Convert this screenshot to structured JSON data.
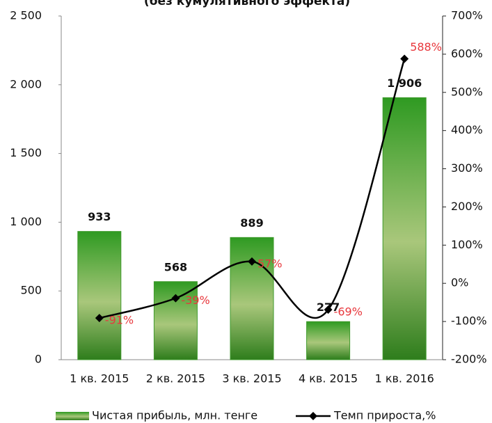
{
  "chart_data": {
    "type": "bar",
    "title": "(без кумулятивного эффекта)",
    "categories": [
      "1 кв. 2015",
      "2 кв. 2015",
      "3 кв. 2015",
      "4 кв. 2015",
      "1 кв. 2016"
    ],
    "series": [
      {
        "name": "Чистая прибыль, млн. тенге",
        "type": "bar",
        "color": "#3f9a2c",
        "values": [
          933,
          568,
          889,
          277,
          1906
        ],
        "value_labels": [
          "933",
          "568",
          "889",
          "277",
          "1 906"
        ]
      },
      {
        "name": "Темп прироста,%",
        "type": "line",
        "axis": "y2",
        "color": "#000000",
        "label_color": "#e8383d",
        "values": [
          -91,
          -39,
          57,
          -69,
          588
        ],
        "value_labels": [
          "-91%",
          "-39%",
          "57%",
          "-69%",
          "588%"
        ]
      }
    ],
    "ylim": [
      0,
      2500
    ],
    "yticks": [
      0,
      500,
      {
        "value": 1000,
        "label": "1 000"
      },
      {
        "value": 1500,
        "label": "1 500"
      },
      {
        "value": 2000,
        "label": "2 000"
      },
      {
        "value": 2500,
        "label": "2 500"
      }
    ],
    "y2lim": [
      -200,
      700
    ],
    "y2ticks": [
      {
        "value": -200,
        "label": "-200%"
      },
      {
        "value": -100,
        "label": "-100%"
      },
      {
        "value": 0,
        "label": "0%"
      },
      {
        "value": 100,
        "label": "100%"
      },
      {
        "value": 200,
        "label": "200%"
      },
      {
        "value": 300,
        "label": "300%"
      },
      {
        "value": 400,
        "label": "400%"
      },
      {
        "value": 500,
        "label": "500%"
      },
      {
        "value": 600,
        "label": "600%"
      },
      {
        "value": 700,
        "label": "700%"
      }
    ],
    "grid": false
  }
}
